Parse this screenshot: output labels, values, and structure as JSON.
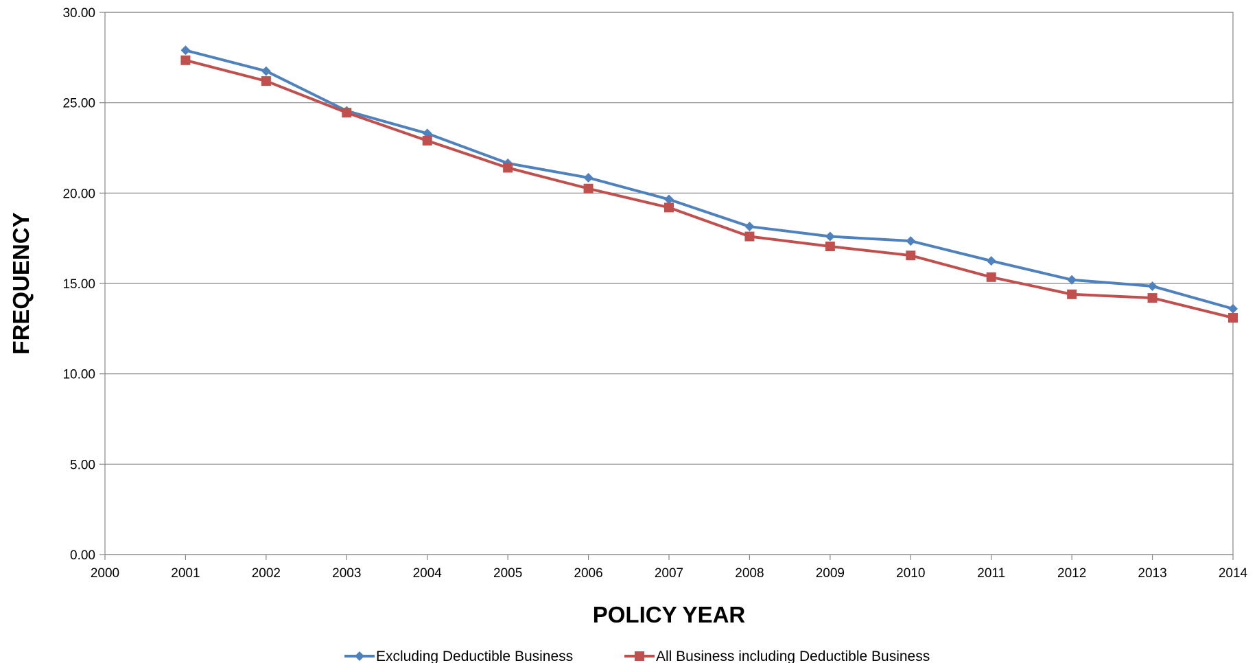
{
  "chart_data": {
    "type": "line",
    "title": "",
    "xlabel": "POLICY YEAR",
    "ylabel": "FREQUENCY",
    "x": [
      2001,
      2002,
      2003,
      2004,
      2005,
      2006,
      2007,
      2008,
      2009,
      2010,
      2011,
      2012,
      2013,
      2014
    ],
    "x_ticks": [
      "2000",
      "2001",
      "2002",
      "2003",
      "2004",
      "2005",
      "2006",
      "2007",
      "2008",
      "2009",
      "2010",
      "2011",
      "2012",
      "2013",
      "2014"
    ],
    "xlim": [
      2000,
      2014
    ],
    "ylim": [
      0,
      30
    ],
    "y_ticks": [
      "0.00",
      "5.00",
      "10.00",
      "15.00",
      "20.00",
      "25.00",
      "30.00"
    ],
    "grid": "horizontal",
    "legend_position": "bottom",
    "series": [
      {
        "name": "Excluding Deductible Business",
        "color": "#4F81BD",
        "marker": "diamond",
        "values": [
          27.9,
          26.75,
          24.55,
          23.3,
          21.65,
          20.85,
          19.65,
          18.15,
          17.6,
          17.35,
          16.25,
          15.2,
          14.85,
          13.6
        ]
      },
      {
        "name": "All Business including Deductible Business",
        "color": "#C0504D",
        "marker": "square",
        "values": [
          27.35,
          26.2,
          24.45,
          22.9,
          21.4,
          20.25,
          19.2,
          17.6,
          17.05,
          16.55,
          15.35,
          14.4,
          14.2,
          13.1
        ]
      }
    ]
  }
}
